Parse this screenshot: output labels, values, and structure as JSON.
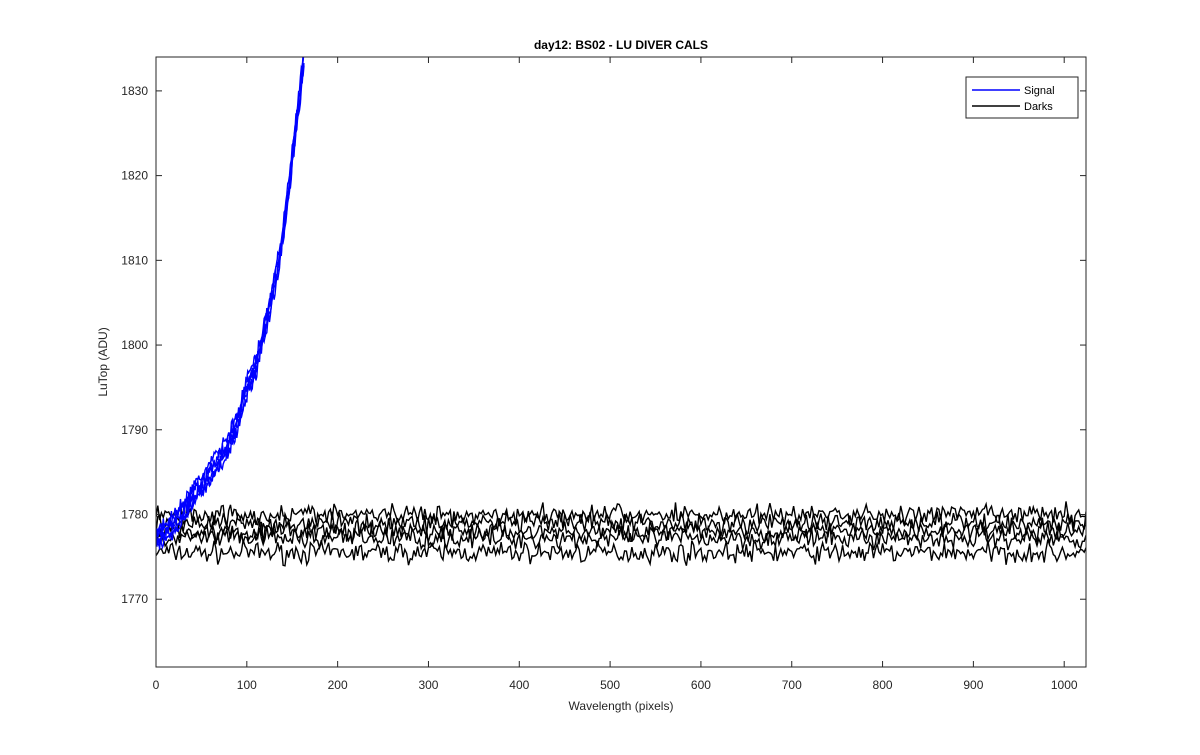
{
  "chart_data": {
    "type": "line",
    "title": "day12: BS02 - LU DIVER CALS",
    "xlabel": "Wavelength (pixels)",
    "ylabel": "LuTop (ADU)",
    "xlim": [
      0,
      1024
    ],
    "ylim": [
      1762,
      1834
    ],
    "xticks": [
      0,
      100,
      200,
      300,
      400,
      500,
      600,
      700,
      800,
      900,
      1000
    ],
    "yticks": [
      1770,
      1780,
      1790,
      1800,
      1810,
      1820,
      1830
    ],
    "grid": false,
    "legend_position": "top-right",
    "series": [
      {
        "name": "Signal",
        "color": "#0000ff",
        "count": 5,
        "x": [
          0,
          10,
          20,
          30,
          40,
          50,
          60,
          70,
          80,
          90,
          100,
          110,
          120,
          130,
          140,
          150,
          160,
          163
        ],
        "y": [
          1777,
          1778,
          1779,
          1780.5,
          1782,
          1783.5,
          1785,
          1786.5,
          1788.5,
          1791,
          1795,
          1797.5,
          1802,
          1807,
          1813,
          1822,
          1831,
          1834
        ]
      },
      {
        "name": "Darks",
        "color": "#000000",
        "count": 5,
        "levels": [
          1775.5,
          1777.2,
          1778.0,
          1779.0,
          1780.0
        ],
        "x_range": [
          0,
          1024
        ],
        "noise_amplitude": 1.2
      }
    ]
  }
}
